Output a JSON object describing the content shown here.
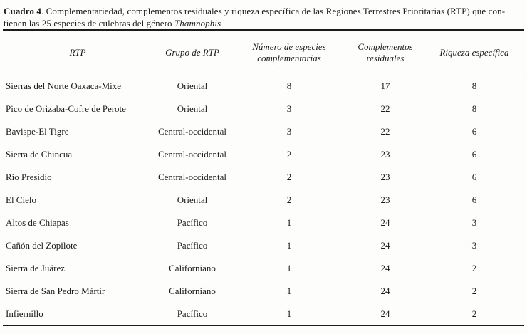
{
  "page": {
    "background_color": "#fdfdfc",
    "text_color": "#1b1b1b"
  },
  "caption": {
    "label": "Cuadro 4",
    "line1_rest": ". Complementariedad, complementos residuales y riqueza específica de las Regiones Terrestres Prioritarias (RTP) que con-",
    "line2_prefix": "tienen las 25 especies de culebras del género ",
    "genus": "Thamnophis"
  },
  "table": {
    "columns": [
      "RTP",
      "Grupo de RTP",
      "Número de especies complementarias",
      "Complementos residuales",
      "Riqueza específica"
    ],
    "rows": [
      {
        "rtp": "Sierras del Norte Oaxaca-Mixe",
        "grupo": "Oriental",
        "complementarias": "8",
        "residuales": "17",
        "riqueza": "8"
      },
      {
        "rtp": "Pico de Orizaba-Cofre de Perote",
        "grupo": "Oriental",
        "complementarias": "3",
        "residuales": "22",
        "riqueza": "8"
      },
      {
        "rtp": "Bavispe-El Tigre",
        "grupo": "Central-occidental",
        "complementarias": "3",
        "residuales": "22",
        "riqueza": "6"
      },
      {
        "rtp": "Sierra de Chincua",
        "grupo": "Central-occidental",
        "complementarias": "2",
        "residuales": "23",
        "riqueza": "6"
      },
      {
        "rtp": "Río Presidio",
        "grupo": "Central-occidental",
        "complementarias": "2",
        "residuales": "23",
        "riqueza": "6"
      },
      {
        "rtp": "El Cielo",
        "grupo": "Oriental",
        "complementarias": "2",
        "residuales": "23",
        "riqueza": "6"
      },
      {
        "rtp": "Altos de Chiapas",
        "grupo": "Pacífico",
        "complementarias": "1",
        "residuales": "24",
        "riqueza": "3"
      },
      {
        "rtp": "Cañón del Zopilote",
        "grupo": "Pacífico",
        "complementarias": "1",
        "residuales": "24",
        "riqueza": "3"
      },
      {
        "rtp": "Sierra de Juárez",
        "grupo": "Californiano",
        "complementarias": "1",
        "residuales": "24",
        "riqueza": "2"
      },
      {
        "rtp": "Sierra de San Pedro Mártir",
        "grupo": "Californiano",
        "complementarias": "1",
        "residuales": "24",
        "riqueza": "2"
      },
      {
        "rtp": "Infiernillo",
        "grupo": "Pacífico",
        "complementarias": "1",
        "residuales": "24",
        "riqueza": "2"
      }
    ]
  }
}
